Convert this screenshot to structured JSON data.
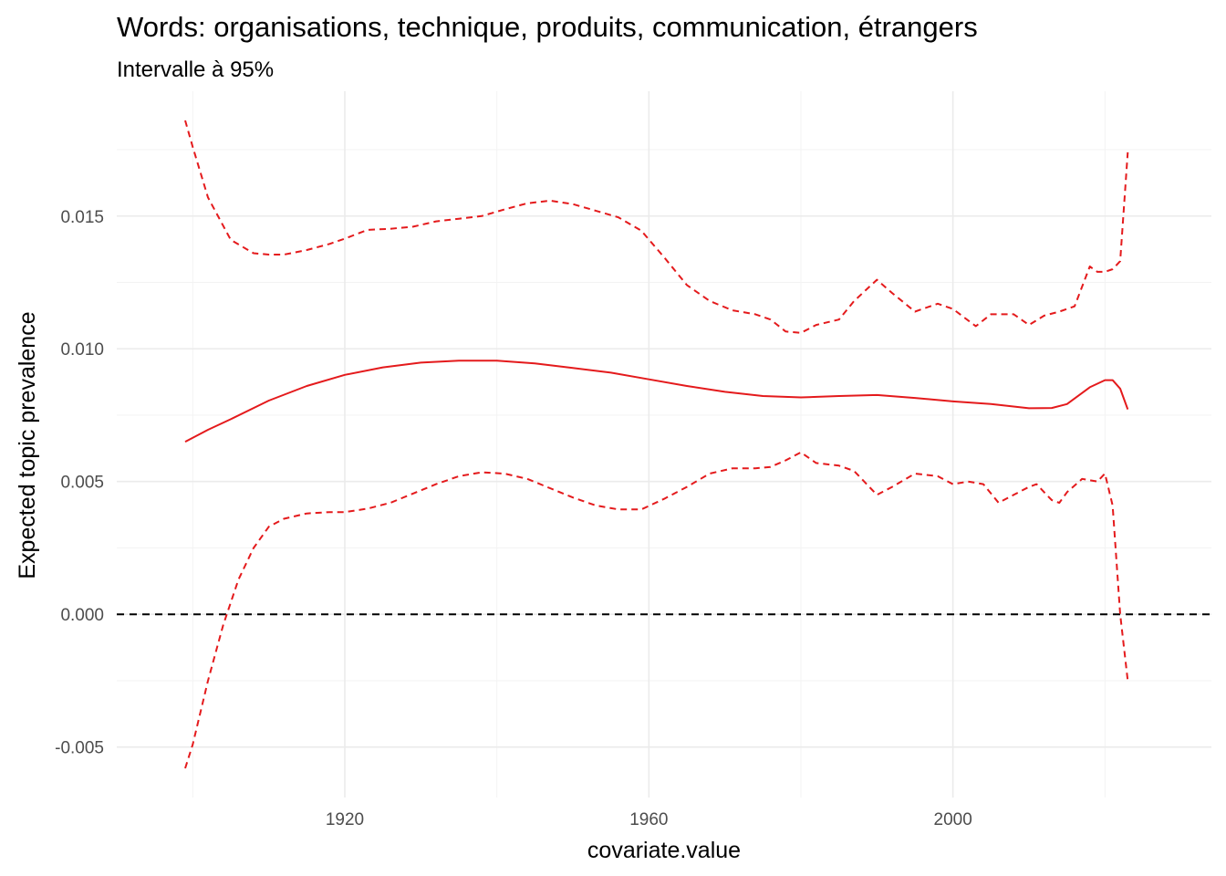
{
  "chart_data": {
    "type": "line",
    "title": "Words: organisations, technique, produits, communication, étrangers",
    "subtitle": "Intervalle à 95%",
    "xlabel": "covariate.value",
    "ylabel": "Expected topic prevalence",
    "xlim": [
      1890,
      2034
    ],
    "ylim": [
      -0.0069,
      0.0197
    ],
    "x_ticks": [
      1920,
      1960,
      2000
    ],
    "x_tick_labels": [
      "1920",
      "1960",
      "2000"
    ],
    "x_minor_ticks": [
      1900,
      1940,
      1980,
      2020
    ],
    "y_ticks": [
      -0.005,
      0.0,
      0.005,
      0.01,
      0.015
    ],
    "y_tick_labels": [
      "-0.005",
      "0.000",
      "0.005",
      "0.010",
      "0.015"
    ],
    "y_minor_ticks": [
      -0.0025,
      0.0025,
      0.0075,
      0.0125,
      0.0175
    ],
    "grid": true,
    "legend": "none",
    "reference_line": {
      "y": 0.0,
      "style": "dashed",
      "color": "#000000"
    },
    "line_color": "#e41a1c",
    "series": [
      {
        "role": "estimate",
        "style": "solid",
        "x": [
          1899,
          1902,
          1905,
          1910,
          1915,
          1920,
          1925,
          1930,
          1935,
          1940,
          1945,
          1950,
          1955,
          1960,
          1965,
          1970,
          1975,
          1980,
          1985,
          1990,
          1995,
          2000,
          2005,
          2010,
          2013,
          2015,
          2018,
          2020,
          2021,
          2022,
          2023
        ],
        "y": [
          0.0065,
          0.00695,
          0.00735,
          0.00805,
          0.0086,
          0.00902,
          0.0093,
          0.00948,
          0.00955,
          0.00955,
          0.00945,
          0.00928,
          0.0091,
          0.00885,
          0.0086,
          0.00838,
          0.00822,
          0.00817,
          0.00822,
          0.00826,
          0.00815,
          0.00802,
          0.00792,
          0.00776,
          0.00777,
          0.00792,
          0.00855,
          0.00882,
          0.00882,
          0.0085,
          0.00772
        ]
      },
      {
        "role": "upper-95",
        "style": "dashed",
        "x": [
          1899,
          1900,
          1902,
          1905,
          1908,
          1910,
          1912,
          1915,
          1918,
          1920,
          1923,
          1926,
          1929,
          1932,
          1935,
          1938,
          1941,
          1944,
          1947,
          1950,
          1953,
          1956,
          1959,
          1962,
          1965,
          1968,
          1971,
          1974,
          1976,
          1978,
          1980,
          1982,
          1985,
          1987,
          1990,
          1992,
          1995,
          1998,
          2000,
          2003,
          2005,
          2008,
          2010,
          2012,
          2014,
          2016,
          2018,
          2019,
          2020,
          2021,
          2022,
          2023
        ],
        "y": [
          0.0186,
          0.0176,
          0.0157,
          0.0141,
          0.0136,
          0.01355,
          0.01355,
          0.01372,
          0.01395,
          0.01415,
          0.01448,
          0.01452,
          0.0146,
          0.0148,
          0.0149,
          0.015,
          0.01525,
          0.01548,
          0.01558,
          0.01545,
          0.0152,
          0.01495,
          0.01445,
          0.01345,
          0.0124,
          0.0118,
          0.01145,
          0.0113,
          0.0111,
          0.01065,
          0.0106,
          0.0109,
          0.0111,
          0.0118,
          0.0126,
          0.0121,
          0.0114,
          0.0117,
          0.0115,
          0.01085,
          0.0113,
          0.0113,
          0.0109,
          0.01125,
          0.0114,
          0.0116,
          0.0131,
          0.0129,
          0.0129,
          0.013,
          0.0133,
          0.0174
        ]
      },
      {
        "role": "lower-95",
        "style": "dashed",
        "x": [
          1899,
          1900,
          1902,
          1904,
          1906,
          1908,
          1910,
          1912,
          1915,
          1918,
          1920,
          1923,
          1926,
          1929,
          1932,
          1935,
          1938,
          1941,
          1944,
          1947,
          1950,
          1953,
          1956,
          1959,
          1962,
          1965,
          1968,
          1971,
          1974,
          1976,
          1978,
          1980,
          1982,
          1985,
          1987,
          1990,
          1992,
          1995,
          1998,
          2000,
          2002,
          2004,
          2006,
          2008,
          2010,
          2011,
          2012,
          2013,
          2014,
          2015,
          2017,
          2019,
          2020,
          2021,
          2022,
          2023
        ],
        "y": [
          -0.0058,
          -0.0049,
          -0.0025,
          -0.0004,
          0.0013,
          0.0025,
          0.0033,
          0.0036,
          0.0038,
          0.00385,
          0.00385,
          0.00398,
          0.0042,
          0.00455,
          0.0049,
          0.0052,
          0.00535,
          0.0053,
          0.0051,
          0.00475,
          0.0044,
          0.0041,
          0.00395,
          0.00395,
          0.00435,
          0.0048,
          0.0053,
          0.0055,
          0.0055,
          0.00555,
          0.0058,
          0.0061,
          0.0057,
          0.0056,
          0.0054,
          0.0045,
          0.0048,
          0.0053,
          0.0052,
          0.0049,
          0.005,
          0.0049,
          0.0042,
          0.0045,
          0.0048,
          0.0049,
          0.0046,
          0.0043,
          0.0042,
          0.0046,
          0.0051,
          0.005,
          0.0053,
          0.0041,
          0.0,
          -0.0025
        ]
      }
    ]
  }
}
